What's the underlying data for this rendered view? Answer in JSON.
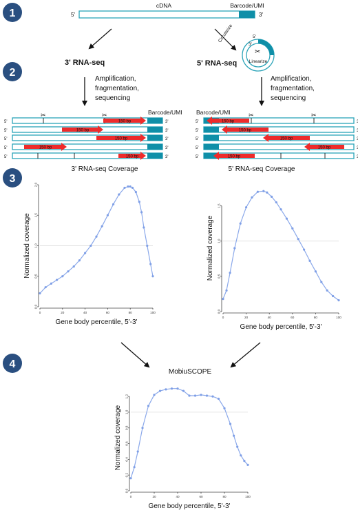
{
  "steps": [
    "1",
    "2",
    "3",
    "4"
  ],
  "top": {
    "cdna_label": "cDNA",
    "barcode_label": "Barcode/UMI",
    "five_prime": "5'",
    "three_prime": "3'"
  },
  "step2": {
    "method_3prime": "3' RNA-seq",
    "method_5prime": "5' RNA-seq",
    "circularize": "Circularize",
    "linearize": "Linearize",
    "five_prime": "5'",
    "three_prime": "3'",
    "process": [
      "Amplification,",
      "fragmentation,",
      "sequencing"
    ],
    "barcode_label": "Barcode/UMI",
    "read_label": "150 bp"
  },
  "colors": {
    "badge": "#2a4f80",
    "molecule_outline": "#2aa3b8",
    "barcode": "#0f8fa8",
    "read_arrow": "#ee2b2b",
    "coverage": "#7f9fe6"
  },
  "chart_data": [
    {
      "type": "line",
      "title": "3' RNA-seq Coverage",
      "xlabel": "Gene body percentile, 5'-3'",
      "ylabel": "Normalized coverage",
      "xlim": [
        0,
        100
      ],
      "ylim": [
        0,
        2
      ],
      "xticks": [
        "0",
        "20",
        "40",
        "60",
        "80",
        "100"
      ],
      "yticks": [
        "0.0",
        "0.5",
        "1.0",
        "1.5",
        "2.0"
      ],
      "reference_line": 1.0,
      "x": [
        0,
        5,
        10,
        15,
        20,
        25,
        30,
        35,
        40,
        45,
        50,
        55,
        60,
        65,
        70,
        75,
        78,
        80,
        82,
        85,
        88,
        90,
        92,
        95,
        98,
        100
      ],
      "y": [
        0.22,
        0.32,
        0.38,
        0.44,
        0.5,
        0.58,
        0.66,
        0.76,
        0.88,
        1.0,
        1.15,
        1.32,
        1.5,
        1.68,
        1.84,
        1.95,
        1.97,
        1.97,
        1.95,
        1.88,
        1.72,
        1.55,
        1.3,
        1.0,
        0.7,
        0.5
      ]
    },
    {
      "type": "line",
      "title": "5' RNA-seq Coverage",
      "xlabel": "Gene body percentile, 5'-3'",
      "ylabel": "Normalized coverage",
      "xlim": [
        0,
        100
      ],
      "ylim": [
        0,
        1.8
      ],
      "xticks": [
        "0",
        "20",
        "40",
        "60",
        "80",
        "100"
      ],
      "yticks": [
        "0.0",
        "0.5",
        "1.0",
        "1.5"
      ],
      "reference_line": 1.0,
      "x": [
        0,
        3,
        6,
        10,
        15,
        20,
        25,
        30,
        35,
        38,
        42,
        46,
        50,
        55,
        60,
        65,
        70,
        75,
        80,
        85,
        90,
        95,
        100
      ],
      "y": [
        0.18,
        0.3,
        0.55,
        0.9,
        1.25,
        1.48,
        1.62,
        1.7,
        1.71,
        1.69,
        1.63,
        1.55,
        1.45,
        1.32,
        1.18,
        1.03,
        0.88,
        0.72,
        0.57,
        0.42,
        0.3,
        0.22,
        0.16
      ]
    },
    {
      "type": "line",
      "title": "MobiuSCOPE",
      "xlabel": "Gene body percentile, 5'-3'",
      "ylabel": "Normalized coverage",
      "xlim": [
        0,
        100
      ],
      "ylim": [
        0,
        1.35
      ],
      "xticks": [
        "0",
        "20",
        "40",
        "60",
        "80",
        "100"
      ],
      "yticks": [
        "0.0",
        "0.2",
        "0.4",
        "0.6",
        "0.8",
        "1.0",
        "1.2"
      ],
      "reference_line": 1.0,
      "x": [
        0,
        3,
        6,
        10,
        15,
        20,
        25,
        30,
        35,
        40,
        45,
        50,
        55,
        60,
        65,
        70,
        75,
        80,
        85,
        88,
        91,
        94,
        97,
        100
      ],
      "y": [
        0.16,
        0.3,
        0.5,
        0.8,
        1.08,
        1.22,
        1.27,
        1.29,
        1.3,
        1.3,
        1.27,
        1.21,
        1.21,
        1.22,
        1.21,
        1.2,
        1.17,
        1.05,
        0.85,
        0.7,
        0.56,
        0.45,
        0.38,
        0.33
      ]
    }
  ]
}
